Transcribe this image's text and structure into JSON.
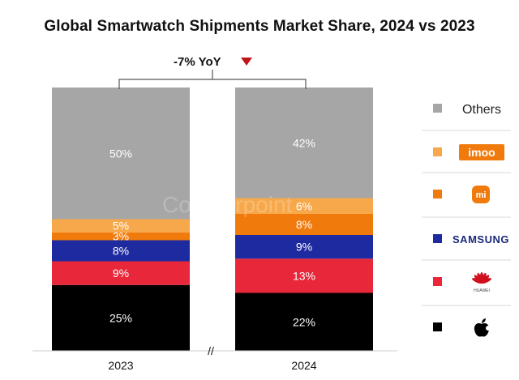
{
  "chart_data": {
    "type": "bar",
    "stacked": true,
    "title": "Global Smartwatch Shipments Market Share, 2024 vs 2023",
    "categories": [
      "2023",
      "2024"
    ],
    "yoy_label": "-7% YoY",
    "axis_break_mark": "//",
    "watermark": "Counterpoint",
    "series": [
      {
        "name": "Apple",
        "legend_icon": "apple-logo",
        "color": "#000000",
        "values": [
          25,
          22
        ],
        "labels": [
          "25%",
          "22%"
        ]
      },
      {
        "name": "Huawei",
        "legend_icon": "huawei-logo",
        "color": "#e8273a",
        "values": [
          9,
          13
        ],
        "labels": [
          "9%",
          "13%"
        ]
      },
      {
        "name": "Samsung",
        "legend_icon": "samsung-logo",
        "color": "#1e2aa0",
        "values": [
          8,
          9
        ],
        "labels": [
          "8%",
          "9%"
        ]
      },
      {
        "name": "Xiaomi",
        "legend_icon": "xiaomi-logo",
        "color": "#f07a0c",
        "values": [
          3,
          8
        ],
        "labels": [
          "3%",
          "8%"
        ]
      },
      {
        "name": "imoo",
        "legend_icon": "imoo-logo",
        "color": "#f7a84a",
        "values": [
          5,
          6
        ],
        "labels": [
          "5%",
          "6%"
        ]
      },
      {
        "name": "Others",
        "color": "#a6a6a6",
        "values": [
          50,
          42
        ],
        "labels": [
          "50%",
          "42%"
        ]
      }
    ],
    "logo_text": {
      "samsung": "SAMSUNG",
      "huawei": "HUAWEI",
      "imoo": "imoo",
      "xiaomi": "mi"
    },
    "ylim": [
      0,
      100
    ],
    "grid": false,
    "legend_position": "right"
  }
}
